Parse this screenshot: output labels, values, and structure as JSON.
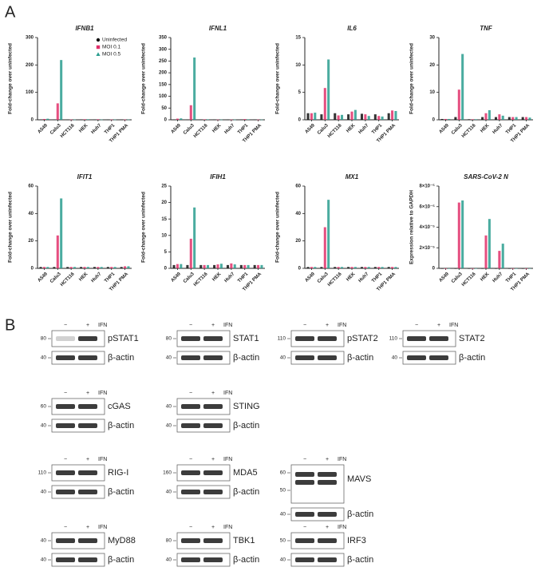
{
  "panel_labels": [
    "A",
    "B"
  ],
  "chart_data": [
    {
      "type": "bar",
      "title": "IFNB1",
      "y_label": "Fold-change over uninfected",
      "legend": "upper right",
      "categories": [
        "A549",
        "Calu3",
        "HCT116",
        "HEK",
        "Huh7",
        "THP1",
        "THP1 PMA"
      ],
      "series": [
        {
          "name": "Uninfected",
          "color": "#111111",
          "values": [
            1,
            1,
            1,
            1,
            1,
            1,
            1
          ]
        },
        {
          "name": "MOI 0.1",
          "color": "#e0306a",
          "values": [
            3,
            60,
            1,
            2,
            2,
            1,
            1
          ]
        },
        {
          "name": "MOI 0.5",
          "color": "#2a9d8f",
          "values": [
            4,
            218,
            1,
            2,
            1,
            1,
            1
          ]
        }
      ],
      "ylim": [
        0,
        300
      ],
      "yticks": [
        0,
        100,
        200,
        300
      ]
    },
    {
      "type": "bar",
      "title": "IFNL1",
      "y_label": "Fold-change over uninfected",
      "categories": [
        "A549",
        "Calu3",
        "HCT116",
        "HEK",
        "Huh7",
        "THP1",
        "THP1 PMA"
      ],
      "series": [
        {
          "name": "Uninfected",
          "color": "#111111",
          "values": [
            1,
            1,
            1,
            1,
            1,
            1,
            1
          ]
        },
        {
          "name": "MOI 0.1",
          "color": "#e0306a",
          "values": [
            5,
            62,
            2,
            1,
            1,
            3,
            1
          ]
        },
        {
          "name": "MOI 0.5",
          "color": "#2a9d8f",
          "values": [
            6,
            265,
            2,
            1,
            1,
            2,
            1
          ]
        }
      ],
      "ylim": [
        0,
        350
      ],
      "yticks": [
        0,
        50,
        100,
        150,
        200,
        250,
        300,
        350
      ]
    },
    {
      "type": "bar",
      "title": "IL6",
      "y_label": "Fold-change over uninfected",
      "categories": [
        "A549",
        "Calu3",
        "HCT116",
        "HEK",
        "Huh7",
        "THP1",
        "THP1 PMA"
      ],
      "series": [
        {
          "name": "Uninfected",
          "color": "#111111",
          "values": [
            1.2,
            1,
            1.2,
            1,
            1.1,
            1,
            1.2
          ]
        },
        {
          "name": "MOI 0.1",
          "color": "#e0306a",
          "values": [
            1.2,
            5.8,
            0.8,
            1.5,
            1,
            0.7,
            1.7
          ]
        },
        {
          "name": "MOI 0.5",
          "color": "#2a9d8f",
          "values": [
            1.3,
            11,
            0.9,
            1.8,
            0.7,
            0.6,
            1.6
          ]
        }
      ],
      "ylim": [
        0,
        15
      ],
      "yticks": [
        0,
        5,
        10,
        15
      ]
    },
    {
      "type": "bar",
      "title": "TNF",
      "y_label": "Fold-change over uninfected",
      "categories": [
        "A549",
        "Calu3",
        "HCT116",
        "HEK",
        "Huh7",
        "THP1",
        "THP1 PMA"
      ],
      "series": [
        {
          "name": "Uninfected",
          "color": "#111111",
          "values": [
            0.3,
            1,
            0.2,
            1,
            1,
            1,
            1
          ]
        },
        {
          "name": "MOI 0.1",
          "color": "#e0306a",
          "values": [
            0.3,
            11,
            0.2,
            2.4,
            2,
            1,
            1
          ]
        },
        {
          "name": "MOI 0.5",
          "color": "#2a9d8f",
          "values": [
            0.3,
            24,
            0.2,
            3.5,
            1.5,
            1,
            0.8
          ]
        }
      ],
      "ylim": [
        0,
        30
      ],
      "yticks": [
        0,
        10,
        20,
        30
      ]
    },
    {
      "type": "bar",
      "title": "IFIT1",
      "y_label": "Fold-change over uninfected",
      "categories": [
        "A549",
        "Calu3",
        "HCT116",
        "HEK",
        "Huh7",
        "THP1",
        "THP1 PMA"
      ],
      "series": [
        {
          "name": "Uninfected",
          "color": "#111111",
          "values": [
            1,
            1,
            1,
            1,
            1,
            1,
            1
          ]
        },
        {
          "name": "MOI 0.1",
          "color": "#e0306a",
          "values": [
            1,
            24,
            1,
            1,
            1,
            1,
            1.5
          ]
        },
        {
          "name": "MOI 0.5",
          "color": "#2a9d8f",
          "values": [
            1,
            51,
            1,
            1,
            1,
            1,
            1.5
          ]
        }
      ],
      "ylim": [
        0,
        60
      ],
      "yticks": [
        0,
        20,
        40,
        60
      ]
    },
    {
      "type": "bar",
      "title": "IFIH1",
      "y_label": "Fold-change over uninfected",
      "categories": [
        "A549",
        "Calu3",
        "HCT116",
        "HEK",
        "Huh7",
        "THP1",
        "THP1 PMA"
      ],
      "series": [
        {
          "name": "Uninfected",
          "color": "#111111",
          "values": [
            1,
            1,
            1,
            1,
            1,
            1,
            1
          ]
        },
        {
          "name": "MOI 0.1",
          "color": "#e0306a",
          "values": [
            1.3,
            9,
            1,
            1.2,
            1.5,
            1,
            1
          ]
        },
        {
          "name": "MOI 0.5",
          "color": "#2a9d8f",
          "values": [
            1.3,
            18.5,
            1,
            1.4,
            1.2,
            1,
            1
          ]
        }
      ],
      "ylim": [
        0,
        25
      ],
      "yticks": [
        0,
        5,
        10,
        15,
        20,
        25
      ]
    },
    {
      "type": "bar",
      "title": "MX1",
      "y_label": "Fold-change over uninfected",
      "categories": [
        "A549",
        "Calu3",
        "HCT116",
        "HEK",
        "Huh7",
        "THP1",
        "THP1 PMA"
      ],
      "series": [
        {
          "name": "Uninfected",
          "color": "#111111",
          "values": [
            1,
            1,
            1,
            1,
            1,
            1,
            1
          ]
        },
        {
          "name": "MOI 0.1",
          "color": "#e0306a",
          "values": [
            1,
            30,
            1,
            1,
            1,
            1,
            1
          ]
        },
        {
          "name": "MOI 0.5",
          "color": "#2a9d8f",
          "values": [
            1,
            50,
            1,
            1,
            1,
            1,
            1
          ]
        }
      ],
      "ylim": [
        0,
        60
      ],
      "yticks": [
        0,
        20,
        40,
        60
      ]
    },
    {
      "type": "bar",
      "title": "SARS-CoV-2 N",
      "y_label": "Expression relative to GAPDH",
      "categories": [
        "A549",
        "Calu3",
        "HCT116",
        "HEK",
        "Huh7",
        "THP1",
        "THP1 PMA"
      ],
      "series": [
        {
          "name": "Uninfected",
          "color": "#111111",
          "values": [
            0,
            0,
            0,
            0,
            0,
            0,
            0
          ]
        },
        {
          "name": "MOI 0.1",
          "color": "#e0306a",
          "values": [
            0,
            6.4e-05,
            0,
            3.2e-05,
            1.7e-05,
            0,
            0
          ]
        },
        {
          "name": "MOI 0.5",
          "color": "#2a9d8f",
          "values": [
            0,
            6.6e-05,
            0,
            4.8e-05,
            2.4e-05,
            0,
            0
          ]
        }
      ],
      "ylim": [
        0,
        8e-05
      ],
      "yticks": [
        0,
        {
          "value": 2e-05,
          "label": "2×10⁻⁵"
        },
        {
          "value": 4e-05,
          "label": "4×10⁻⁵"
        },
        {
          "value": 6e-05,
          "label": "6×10⁻⁵"
        },
        {
          "value": 8e-05,
          "label": "8×10⁻⁵"
        }
      ]
    }
  ],
  "blots": {
    "treatment": "IFN",
    "minus": "−",
    "plus": "+",
    "loading": "β-actin",
    "panels": [
      {
        "name": "pSTAT1",
        "mw": [
          80
        ],
        "loading_mw": 40
      },
      {
        "name": "STAT1",
        "mw": [
          80
        ],
        "loading_mw": 40
      },
      {
        "name": "pSTAT2",
        "mw": [
          110
        ],
        "loading_mw": 40
      },
      {
        "name": "STAT2",
        "mw": [
          110
        ],
        "loading_mw": 40
      },
      {
        "name": "cGAS",
        "mw": [
          60
        ],
        "loading_mw": 40
      },
      {
        "name": "STING",
        "mw": [
          40
        ],
        "loading_mw": 40
      },
      {
        "name": "RIG-I",
        "mw": [
          110
        ],
        "loading_mw": 40
      },
      {
        "name": "MDA5",
        "mw": [
          160
        ],
        "loading_mw": 40
      },
      {
        "name": "MAVS",
        "mw": [
          60,
          50
        ],
        "loading_mw": 40
      },
      {
        "name": "MyD88",
        "mw": [
          40
        ],
        "loading_mw": 40
      },
      {
        "name": "TBK1",
        "mw": [
          80
        ],
        "loading_mw": 40
      },
      {
        "name": "IRF3",
        "mw": [
          50
        ],
        "loading_mw": 40
      }
    ]
  }
}
